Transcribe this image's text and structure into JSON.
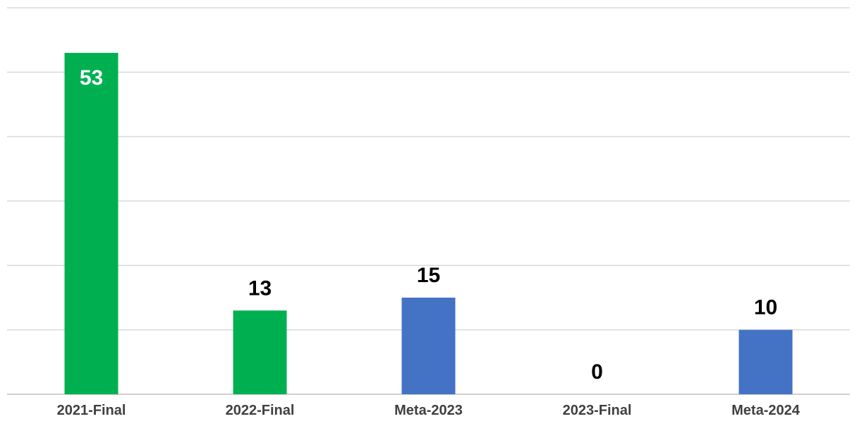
{
  "chart_data": {
    "type": "bar",
    "categories": [
      "2021-Final",
      "2022-Final",
      "Meta-2023",
      "2023-Final",
      "Meta-2024"
    ],
    "values": [
      53,
      13,
      15,
      0,
      10
    ],
    "bar_colors": [
      "#00b050",
      "#00b050",
      "#4472c4",
      "#4472c4",
      "#4472c4"
    ],
    "data_label_colors": [
      "#ffffff",
      "#000000",
      "#000000",
      "#000000",
      "#000000"
    ],
    "data_label_positions": [
      "inside-end",
      "outside-end",
      "outside-end",
      "outside-end",
      "outside-end"
    ],
    "title": "",
    "xlabel": "",
    "ylabel": "",
    "ylim": [
      0,
      60
    ],
    "y_gridline_step": 10,
    "grid": true,
    "legend": "none"
  }
}
